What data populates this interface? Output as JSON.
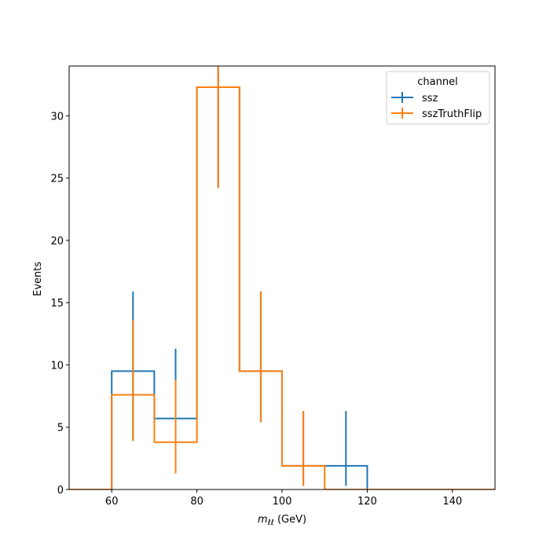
{
  "chart_data": {
    "type": "step-histogram",
    "title": "",
    "xlabel": "m_ll (GeV)",
    "xlabel_parts": {
      "main": "m",
      "sub": "ℓℓ",
      "unit": " (GeV)"
    },
    "ylabel": "Events",
    "xlim": [
      50,
      150
    ],
    "ylim": [
      0,
      34
    ],
    "xticks": [
      60,
      80,
      100,
      120,
      140
    ],
    "yticks": [
      0,
      5,
      10,
      15,
      20,
      25,
      30
    ],
    "bin_edges": [
      50,
      60,
      70,
      80,
      90,
      100,
      110,
      120,
      130,
      140,
      150
    ],
    "legend": {
      "title": "channel",
      "position": "top-right"
    },
    "series": [
      {
        "name": "ssz",
        "color": "#1f77b4",
        "values": [
          0,
          9.5,
          5.7,
          32.3,
          9.5,
          1.9,
          1.9,
          0,
          0,
          0
        ],
        "errors": [
          {
            "x": 65,
            "low": 3.9,
            "high": 15.9
          },
          {
            "x": 75,
            "low": 1.3,
            "high": 11.3
          },
          {
            "x": 85,
            "low": 24.2,
            "high": 34.0
          },
          {
            "x": 95,
            "low": 5.4,
            "high": 15.9
          },
          {
            "x": 105,
            "low": 0.3,
            "high": 6.3
          },
          {
            "x": 115,
            "low": 0.3,
            "high": 6.3
          }
        ]
      },
      {
        "name": "sszTruthFlip",
        "color": "#ff7f0e",
        "values": [
          0,
          7.6,
          3.8,
          32.3,
          9.5,
          1.9,
          0,
          0,
          0,
          0
        ],
        "errors": [
          {
            "x": 65,
            "low": 3.9,
            "high": 13.6
          },
          {
            "x": 75,
            "low": 1.3,
            "high": 8.8
          },
          {
            "x": 85,
            "low": 24.2,
            "high": 34.0
          },
          {
            "x": 95,
            "low": 5.4,
            "high": 15.9
          },
          {
            "x": 105,
            "low": 0.3,
            "high": 6.3
          }
        ]
      }
    ]
  }
}
